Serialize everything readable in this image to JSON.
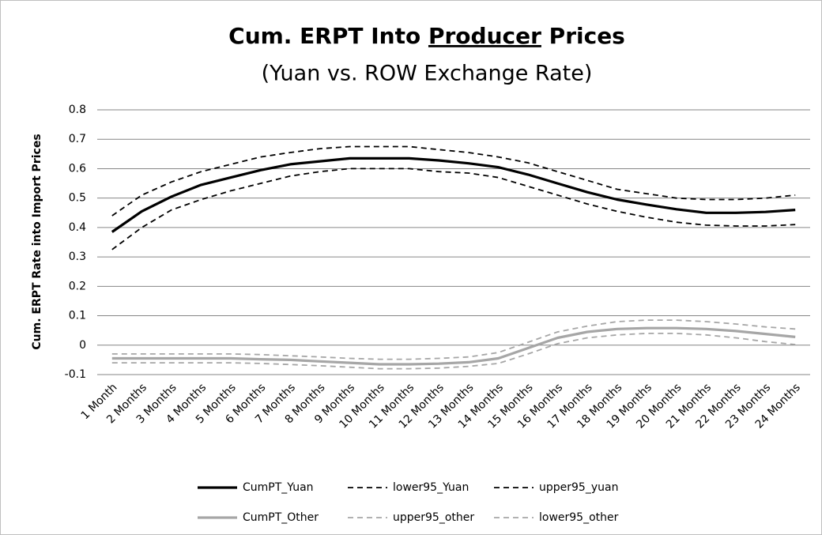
{
  "chart_data": {
    "type": "line",
    "title": [
      "Cum. ERPT Into ",
      "Producer",
      " Prices"
    ],
    "subtitle": "(Yuan vs. ROW Exchange Rate)",
    "y_label": "Cum. ERPT Rate into Import Prices",
    "categories": [
      "1 Month",
      "2 Months",
      "3 Months",
      "4 Months",
      "5 Months",
      "6 Months",
      "7 Months",
      "8 Months",
      "9 Months",
      "10 Months",
      "11 Months",
      "12 Months",
      "13 Months",
      "14 Months",
      "15 Months",
      "16 Months",
      "17 Months",
      "18 Months",
      "19 Months",
      "20 Months",
      "21 Months",
      "22 Months",
      "23 Months",
      "24 Months"
    ],
    "ylim": [
      -0.1,
      0.8
    ],
    "yticks": [
      0.8,
      0.7,
      0.6,
      0.5,
      0.4,
      0.3,
      0.2,
      0.1,
      0,
      -0.1
    ],
    "grid": true,
    "series": [
      {
        "name": "CumPT_Yuan",
        "color": "#000000",
        "dashed": false,
        "values": [
          0.385,
          0.455,
          0.505,
          0.545,
          0.57,
          0.595,
          0.615,
          0.625,
          0.635,
          0.635,
          0.635,
          0.628,
          0.618,
          0.605,
          0.58,
          0.55,
          0.52,
          0.495,
          0.478,
          0.462,
          0.45,
          0.45,
          0.453,
          0.46
        ]
      },
      {
        "name": "lower95_Yuan",
        "color": "#000000",
        "dashed": true,
        "values": [
          0.325,
          0.4,
          0.46,
          0.495,
          0.525,
          0.55,
          0.575,
          0.59,
          0.6,
          0.6,
          0.6,
          0.59,
          0.585,
          0.57,
          0.54,
          0.51,
          0.48,
          0.455,
          0.435,
          0.418,
          0.408,
          0.405,
          0.405,
          0.41
        ]
      },
      {
        "name": "upper95_yuan",
        "color": "#000000",
        "dashed": true,
        "values": [
          0.44,
          0.51,
          0.555,
          0.59,
          0.615,
          0.64,
          0.655,
          0.668,
          0.675,
          0.675,
          0.675,
          0.665,
          0.655,
          0.64,
          0.62,
          0.59,
          0.56,
          0.53,
          0.515,
          0.5,
          0.495,
          0.495,
          0.5,
          0.51
        ]
      },
      {
        "name": "CumPT_Other",
        "color": "#a6a6a6",
        "dashed": false,
        "values": [
          -0.045,
          -0.045,
          -0.045,
          -0.045,
          -0.045,
          -0.048,
          -0.05,
          -0.055,
          -0.06,
          -0.065,
          -0.065,
          -0.063,
          -0.058,
          -0.045,
          -0.01,
          0.025,
          0.045,
          0.055,
          0.058,
          0.058,
          0.055,
          0.048,
          0.038,
          0.028
        ]
      },
      {
        "name": "upper95_other",
        "color": "#a6a6a6",
        "dashed": true,
        "values": [
          -0.03,
          -0.03,
          -0.03,
          -0.03,
          -0.03,
          -0.032,
          -0.036,
          -0.04,
          -0.045,
          -0.048,
          -0.048,
          -0.045,
          -0.04,
          -0.025,
          0.01,
          0.045,
          0.065,
          0.08,
          0.085,
          0.085,
          0.08,
          0.072,
          0.062,
          0.055
        ]
      },
      {
        "name": "lower95_other",
        "color": "#a6a6a6",
        "dashed": true,
        "values": [
          -0.06,
          -0.06,
          -0.06,
          -0.06,
          -0.06,
          -0.062,
          -0.066,
          -0.07,
          -0.075,
          -0.08,
          -0.08,
          -0.078,
          -0.072,
          -0.062,
          -0.03,
          0.005,
          0.025,
          0.035,
          0.04,
          0.04,
          0.035,
          0.025,
          0.012,
          0.002
        ]
      }
    ]
  }
}
